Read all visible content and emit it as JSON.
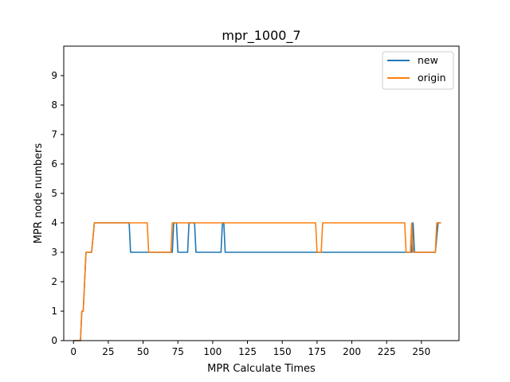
{
  "chart_data": {
    "type": "line",
    "title": "mpr_1000_7",
    "xlabel": "MPR Calculate Times",
    "ylabel": "MPR node numbers",
    "xlim": [
      -7,
      277
    ],
    "ylim": [
      0,
      10
    ],
    "xticks": [
      0,
      25,
      50,
      75,
      100,
      125,
      150,
      175,
      200,
      225,
      250
    ],
    "yticks": [
      0,
      1,
      2,
      3,
      4,
      5,
      6,
      7,
      8,
      9
    ],
    "grid": false,
    "legend_position": "upper-right",
    "series": [
      {
        "name": "new",
        "color": "#1f77b4",
        "points": [
          [
            0,
            0
          ],
          [
            5,
            0
          ],
          [
            6,
            1
          ],
          [
            7,
            1
          ],
          [
            8,
            2
          ],
          [
            9,
            3
          ],
          [
            13,
            3
          ],
          [
            14,
            3.5
          ],
          [
            15,
            4
          ],
          [
            40,
            4
          ],
          [
            41,
            3
          ],
          [
            71,
            3
          ],
          [
            72,
            4
          ],
          [
            74,
            4
          ],
          [
            75,
            3
          ],
          [
            82,
            3
          ],
          [
            83,
            4
          ],
          [
            87,
            4
          ],
          [
            88,
            3
          ],
          [
            106,
            3
          ],
          [
            107,
            4
          ],
          [
            108,
            4
          ],
          [
            109,
            3
          ],
          [
            239,
            3
          ],
          [
            240,
            3
          ],
          [
            243,
            3
          ],
          [
            244,
            4
          ],
          [
            245,
            3
          ],
          [
            260,
            3
          ],
          [
            262,
            4
          ],
          [
            264,
            4
          ]
        ]
      },
      {
        "name": "origin",
        "color": "#ff7f0e",
        "points": [
          [
            0,
            0
          ],
          [
            5,
            0
          ],
          [
            6,
            1
          ],
          [
            7,
            1
          ],
          [
            8,
            2
          ],
          [
            9,
            3
          ],
          [
            13,
            3
          ],
          [
            14,
            3.5
          ],
          [
            15,
            4
          ],
          [
            53,
            4
          ],
          [
            54,
            3
          ],
          [
            70,
            3
          ],
          [
            71,
            4
          ],
          [
            174,
            4
          ],
          [
            175,
            3
          ],
          [
            178,
            3
          ],
          [
            179,
            4
          ],
          [
            238,
            4
          ],
          [
            239,
            3
          ],
          [
            242,
            3
          ],
          [
            243,
            4
          ],
          [
            244,
            3
          ],
          [
            260,
            3
          ],
          [
            261,
            4
          ],
          [
            264,
            4
          ]
        ]
      }
    ]
  }
}
